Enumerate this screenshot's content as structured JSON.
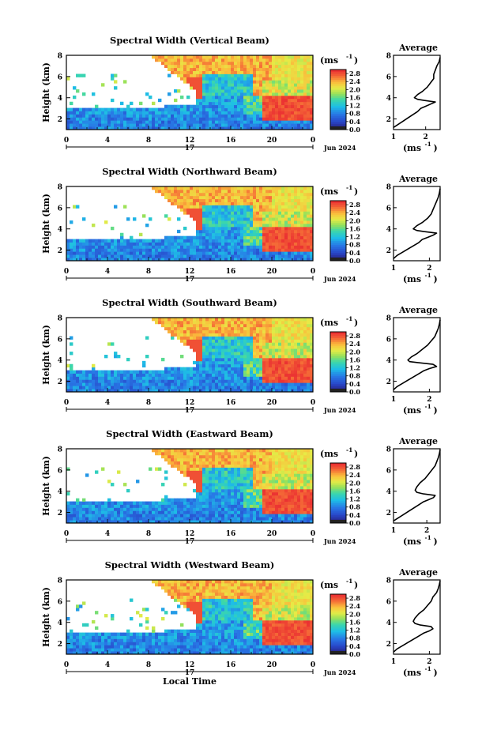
{
  "chart_data": [
    {
      "type": "heatmap",
      "title": "Spectral Width (Vertical Beam)",
      "ylabel": "Height (km)",
      "xlim": [
        0,
        24
      ],
      "ylim": [
        1,
        8
      ],
      "date_label": "17",
      "month_label": "Jun 2024",
      "colorbar_unit": "(ms",
      "colorbar_sup": "-1",
      "colorbar_ticks": [
        "2.8",
        "2.4",
        "2.0",
        "1.6",
        "1.2",
        "0.8",
        "0.4",
        "0.0"
      ],
      "colorbar_range": [
        0,
        3.0
      ],
      "average": {
        "title": "Average",
        "xlabel": "(ms",
        "xlabel_sup": "-1",
        "xticks": [
          "1",
          "2"
        ],
        "xlim": [
          1,
          2.45
        ],
        "ylim": [
          1,
          8
        ],
        "profile": [
          [
            1.0,
            1.2
          ],
          [
            1.15,
            1.5
          ],
          [
            1.3,
            1.8
          ],
          [
            1.45,
            2.1
          ],
          [
            1.6,
            2.4
          ],
          [
            1.75,
            2.7
          ],
          [
            1.85,
            3.0
          ],
          [
            2.0,
            3.2
          ],
          [
            2.15,
            3.4
          ],
          [
            2.3,
            3.6
          ],
          [
            1.95,
            3.75
          ],
          [
            1.75,
            3.85
          ],
          [
            1.65,
            4.0
          ],
          [
            1.75,
            4.3
          ],
          [
            1.9,
            4.6
          ],
          [
            2.05,
            5.0
          ],
          [
            2.15,
            5.4
          ],
          [
            2.25,
            5.8
          ],
          [
            2.25,
            6.2
          ],
          [
            2.3,
            6.6
          ],
          [
            2.35,
            7.0
          ],
          [
            2.42,
            7.4
          ],
          [
            2.45,
            7.8
          ]
        ]
      }
    },
    {
      "type": "heatmap",
      "title": "Spectral Width (Northward Beam)",
      "ylabel": "Height (km)",
      "xlim": [
        0,
        24
      ],
      "ylim": [
        1,
        8
      ],
      "date_label": "17",
      "month_label": "Jun 2024",
      "colorbar_unit": "(ms",
      "colorbar_sup": "-1",
      "colorbar_ticks": [
        "2.8",
        "2.4",
        "2.0",
        "1.6",
        "1.2",
        "0.8",
        "0.4",
        "0.0"
      ],
      "colorbar_range": [
        0,
        3.0
      ],
      "average": {
        "title": "Average",
        "xlabel": "(ms",
        "xlabel_sup": "-1",
        "xticks": [
          "1",
          "2"
        ],
        "xlim": [
          1,
          2.3
        ],
        "ylim": [
          1,
          8
        ],
        "profile": [
          [
            1.0,
            1.2
          ],
          [
            1.1,
            1.5
          ],
          [
            1.25,
            1.8
          ],
          [
            1.4,
            2.1
          ],
          [
            1.55,
            2.4
          ],
          [
            1.7,
            2.7
          ],
          [
            1.8,
            3.0
          ],
          [
            1.95,
            3.2
          ],
          [
            2.1,
            3.4
          ],
          [
            2.2,
            3.6
          ],
          [
            1.85,
            3.75
          ],
          [
            1.65,
            3.85
          ],
          [
            1.55,
            4.0
          ],
          [
            1.65,
            4.3
          ],
          [
            1.8,
            4.6
          ],
          [
            1.95,
            5.0
          ],
          [
            2.05,
            5.4
          ],
          [
            2.1,
            5.8
          ],
          [
            2.15,
            6.2
          ],
          [
            2.2,
            6.6
          ],
          [
            2.25,
            7.0
          ],
          [
            2.28,
            7.4
          ],
          [
            2.3,
            7.8
          ]
        ]
      }
    },
    {
      "type": "heatmap",
      "title": "Spectral Width (Southward Beam)",
      "ylabel": "Height (km)",
      "xlim": [
        0,
        24
      ],
      "ylim": [
        1,
        8
      ],
      "date_label": "17",
      "month_label": "Jun 2024",
      "colorbar_unit": "(ms",
      "colorbar_sup": "-1",
      "colorbar_ticks": [
        "2.8",
        "2.4",
        "2.0",
        "1.6",
        "1.2",
        "0.8",
        "0.4",
        "0.0"
      ],
      "colorbar_range": [
        0,
        3.0
      ],
      "average": {
        "title": "Average",
        "xlabel": "(ms",
        "xlabel_sup": "-1",
        "xticks": [
          "1",
          "2"
        ],
        "xlim": [
          1,
          2.3
        ],
        "ylim": [
          1,
          8
        ],
        "profile": [
          [
            1.0,
            1.2
          ],
          [
            1.1,
            1.5
          ],
          [
            1.25,
            1.8
          ],
          [
            1.4,
            2.1
          ],
          [
            1.55,
            2.4
          ],
          [
            1.7,
            2.7
          ],
          [
            1.85,
            3.0
          ],
          [
            2.0,
            3.2
          ],
          [
            2.2,
            3.4
          ],
          [
            2.1,
            3.6
          ],
          [
            1.7,
            3.75
          ],
          [
            1.45,
            3.85
          ],
          [
            1.4,
            4.0
          ],
          [
            1.5,
            4.3
          ],
          [
            1.65,
            4.6
          ],
          [
            1.8,
            5.0
          ],
          [
            1.95,
            5.4
          ],
          [
            2.05,
            5.8
          ],
          [
            2.15,
            6.2
          ],
          [
            2.2,
            6.6
          ],
          [
            2.25,
            7.0
          ],
          [
            2.28,
            7.4
          ],
          [
            2.3,
            7.8
          ]
        ]
      }
    },
    {
      "type": "heatmap",
      "title": "Spectral Width (Eastward Beam)",
      "ylabel": "Height (km)",
      "xlim": [
        0,
        24
      ],
      "ylim": [
        1,
        8
      ],
      "date_label": "17",
      "month_label": "Jun 2024",
      "colorbar_unit": "(ms",
      "colorbar_sup": "-1",
      "colorbar_ticks": [
        "2.8",
        "2.4",
        "2.0",
        "1.6",
        "1.2",
        "0.8",
        "0.4",
        "0.0"
      ],
      "colorbar_range": [
        0,
        3.0
      ],
      "average": {
        "title": "Average",
        "xlabel": "(ms",
        "xlabel_sup": "-1",
        "xticks": [
          "1",
          "2"
        ],
        "xlim": [
          1,
          2.4
        ],
        "ylim": [
          1,
          8
        ],
        "profile": [
          [
            1.0,
            1.2
          ],
          [
            1.15,
            1.5
          ],
          [
            1.3,
            1.8
          ],
          [
            1.45,
            2.1
          ],
          [
            1.6,
            2.4
          ],
          [
            1.75,
            2.7
          ],
          [
            1.9,
            3.0
          ],
          [
            2.05,
            3.2
          ],
          [
            2.2,
            3.4
          ],
          [
            2.25,
            3.6
          ],
          [
            1.9,
            3.75
          ],
          [
            1.7,
            3.9
          ],
          [
            1.65,
            4.1
          ],
          [
            1.7,
            4.4
          ],
          [
            1.8,
            4.8
          ],
          [
            1.95,
            5.2
          ],
          [
            2.05,
            5.6
          ],
          [
            2.15,
            6.0
          ],
          [
            2.25,
            6.4
          ],
          [
            2.3,
            6.8
          ],
          [
            2.35,
            7.2
          ],
          [
            2.38,
            7.6
          ],
          [
            2.4,
            7.9
          ]
        ]
      }
    },
    {
      "type": "heatmap",
      "title": "Spectral Width (Westward Beam)",
      "ylabel": "Height (km)",
      "xlabel": "Local Time",
      "xlim": [
        0,
        24
      ],
      "ylim": [
        1,
        8
      ],
      "date_label": "17",
      "month_label": "Jun 2024",
      "colorbar_unit": "(ms",
      "colorbar_sup": "-1",
      "colorbar_ticks": [
        "2.8",
        "2.4",
        "2.0",
        "1.6",
        "1.2",
        "0.8",
        "0.4",
        "0.0"
      ],
      "colorbar_range": [
        0,
        3.0
      ],
      "average": {
        "title": "Average",
        "xlabel": "(ms",
        "xlabel_sup": "-1",
        "xticks": [
          "1",
          "2"
        ],
        "xlim": [
          1,
          2.3
        ],
        "ylim": [
          1,
          8
        ],
        "profile": [
          [
            1.0,
            1.2
          ],
          [
            1.1,
            1.5
          ],
          [
            1.25,
            1.8
          ],
          [
            1.4,
            2.1
          ],
          [
            1.55,
            2.4
          ],
          [
            1.7,
            2.7
          ],
          [
            1.85,
            3.0
          ],
          [
            2.0,
            3.2
          ],
          [
            2.1,
            3.4
          ],
          [
            2.05,
            3.6
          ],
          [
            1.75,
            3.75
          ],
          [
            1.6,
            3.9
          ],
          [
            1.55,
            4.1
          ],
          [
            1.6,
            4.4
          ],
          [
            1.7,
            4.8
          ],
          [
            1.85,
            5.2
          ],
          [
            1.95,
            5.6
          ],
          [
            2.05,
            6.0
          ],
          [
            2.1,
            6.4
          ],
          [
            2.2,
            6.8
          ],
          [
            2.25,
            7.2
          ],
          [
            2.28,
            7.6
          ],
          [
            2.3,
            7.9
          ]
        ]
      }
    }
  ],
  "axis": {
    "y_ticks": [
      "8",
      "6",
      "4",
      "2"
    ],
    "x_ticks": [
      "0",
      "4",
      "8",
      "12",
      "16",
      "20",
      "0"
    ]
  }
}
